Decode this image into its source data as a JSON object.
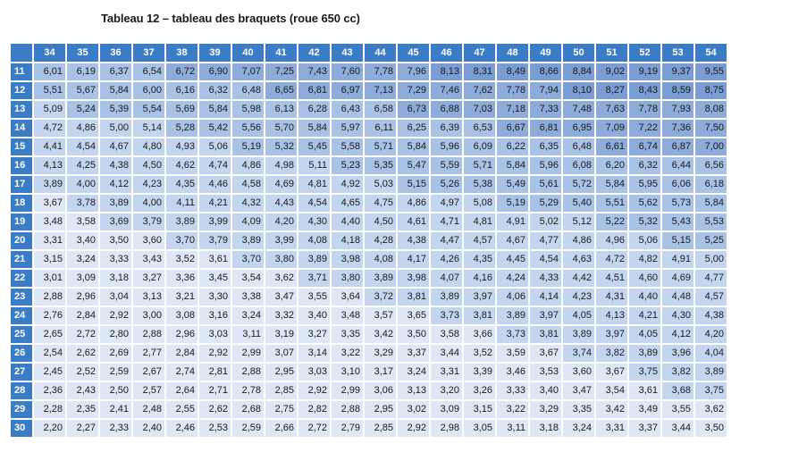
{
  "title": "Tableau 12 – tableau des braquets (roue 650 cc)",
  "columns": [
    "34",
    "35",
    "36",
    "37",
    "38",
    "39",
    "40",
    "41",
    "42",
    "43",
    "44",
    "45",
    "46",
    "47",
    "48",
    "49",
    "50",
    "51",
    "52",
    "53",
    "54"
  ],
  "colors": {
    "header_bg": "#3a7dc6",
    "cell_palette": [
      "#dde7f5",
      "#c4d6ef",
      "#a9c3e6",
      "#8dacd9",
      "#7a9ed3"
    ]
  },
  "rows": [
    {
      "label": "11",
      "values": [
        "6,01",
        "6,19",
        "6,37",
        "6,54",
        "6,72",
        "6,90",
        "7,07",
        "7,25",
        "7,43",
        "7,60",
        "7,78",
        "7,96",
        "8,13",
        "8,31",
        "8,49",
        "8,66",
        "8,84",
        "9,02",
        "9,19",
        "9,37",
        "9,55"
      ]
    },
    {
      "label": "12",
      "values": [
        "5,51",
        "5,67",
        "5,84",
        "6,00",
        "6,16",
        "6,32",
        "6,48",
        "6,65",
        "6,81",
        "6,97",
        "7,13",
        "7,29",
        "7,46",
        "7,62",
        "7,78",
        "7,94",
        "8,10",
        "8,27",
        "8,43",
        "8,59",
        "8,75"
      ]
    },
    {
      "label": "13",
      "values": [
        "5,09",
        "5,24",
        "5,39",
        "5,54",
        "5,69",
        "5,84",
        "5,98",
        "6,13",
        "6,28",
        "6,43",
        "6,58",
        "6,73",
        "6,88",
        "7,03",
        "7,18",
        "7,33",
        "7,48",
        "7,63",
        "7,78",
        "7,93",
        "8,08"
      ]
    },
    {
      "label": "14",
      "values": [
        "4,72",
        "4,86",
        "5,00",
        "5,14",
        "5,28",
        "5,42",
        "5,56",
        "5,70",
        "5,84",
        "5,97",
        "6,11",
        "6,25",
        "6,39",
        "6,53",
        "6,67",
        "6,81",
        "6,95",
        "7,09",
        "7,22",
        "7,36",
        "7,50"
      ]
    },
    {
      "label": "15",
      "values": [
        "4,41",
        "4,54",
        "4,67",
        "4,80",
        "4,93",
        "5,06",
        "5,19",
        "5,32",
        "5,45",
        "5,58",
        "5,71",
        "5,84",
        "5,96",
        "6,09",
        "6,22",
        "6,35",
        "6,48",
        "6,61",
        "6,74",
        "6,87",
        "7,00"
      ]
    },
    {
      "label": "16",
      "values": [
        "4,13",
        "4,25",
        "4,38",
        "4,50",
        "4,62",
        "4,74",
        "4,86",
        "4,98",
        "5,11",
        "5,23",
        "5,35",
        "5,47",
        "5,59",
        "5,71",
        "5,84",
        "5,96",
        "6,08",
        "6,20",
        "6,32",
        "6,44",
        "6,56"
      ]
    },
    {
      "label": "17",
      "values": [
        "3,89",
        "4,00",
        "4,12",
        "4,23",
        "4,35",
        "4,46",
        "4,58",
        "4,69",
        "4,81",
        "4,92",
        "5,03",
        "5,15",
        "5,26",
        "5,38",
        "5,49",
        "5,61",
        "5,72",
        "5,84",
        "5,95",
        "6,06",
        "6,18"
      ]
    },
    {
      "label": "18",
      "values": [
        "3,67",
        "3,78",
        "3,89",
        "4,00",
        "4,11",
        "4,21",
        "4,32",
        "4,43",
        "4,54",
        "4,65",
        "4,75",
        "4,86",
        "4,97",
        "5,08",
        "5,19",
        "5,29",
        "5,40",
        "5,51",
        "5,62",
        "5,73",
        "5,84"
      ]
    },
    {
      "label": "19",
      "values": [
        "3,48",
        "3,58",
        "3,69",
        "3,79",
        "3,89",
        "3,99",
        "4,09",
        "4,20",
        "4,30",
        "4,40",
        "4,50",
        "4,61",
        "4,71",
        "4,81",
        "4,91",
        "5,02",
        "5,12",
        "5,22",
        "5,32",
        "5,43",
        "5,53"
      ]
    },
    {
      "label": "20",
      "values": [
        "3,31",
        "3,40",
        "3,50",
        "3,60",
        "3,70",
        "3,79",
        "3,89",
        "3,99",
        "4,08",
        "4,18",
        "4,28",
        "4,38",
        "4,47",
        "4,57",
        "4,67",
        "4,77",
        "4,86",
        "4,96",
        "5,06",
        "5,15",
        "5,25"
      ]
    },
    {
      "label": "21",
      "values": [
        "3,15",
        "3,24",
        "3,33",
        "3,43",
        "3,52",
        "3,61",
        "3,70",
        "3,80",
        "3,89",
        "3,98",
        "4,08",
        "4,17",
        "4,26",
        "4,35",
        "4,45",
        "4,54",
        "4,63",
        "4,72",
        "4,82",
        "4,91",
        "5,00"
      ]
    },
    {
      "label": "22",
      "values": [
        "3,01",
        "3,09",
        "3,18",
        "3,27",
        "3,36",
        "3,45",
        "3,54",
        "3,62",
        "3,71",
        "3,80",
        "3,89",
        "3,98",
        "4,07",
        "4,16",
        "4,24",
        "4,33",
        "4,42",
        "4,51",
        "4,60",
        "4,69",
        "4,77"
      ]
    },
    {
      "label": "23",
      "values": [
        "2,88",
        "2,96",
        "3,04",
        "3,13",
        "3,21",
        "3,30",
        "3,38",
        "3,47",
        "3,55",
        "3,64",
        "3,72",
        "3,81",
        "3,89",
        "3,97",
        "4,06",
        "4,14",
        "4,23",
        "4,31",
        "4,40",
        "4,48",
        "4,57"
      ]
    },
    {
      "label": "24",
      "values": [
        "2,76",
        "2,84",
        "2,92",
        "3,00",
        "3,08",
        "3,16",
        "3,24",
        "3,32",
        "3,40",
        "3,48",
        "3,57",
        "3,65",
        "3,73",
        "3,81",
        "3,89",
        "3,97",
        "4,05",
        "4,13",
        "4,21",
        "4,30",
        "4,38"
      ]
    },
    {
      "label": "25",
      "values": [
        "2,65",
        "2,72",
        "2,80",
        "2,88",
        "2,96",
        "3,03",
        "3,11",
        "3,19",
        "3,27",
        "3,35",
        "3,42",
        "3,50",
        "3,58",
        "3,66",
        "3,73",
        "3,81",
        "3,89",
        "3,97",
        "4,05",
        "4,12",
        "4,20"
      ]
    },
    {
      "label": "26",
      "values": [
        "2,54",
        "2,62",
        "2,69",
        "2,77",
        "2,84",
        "2,92",
        "2,99",
        "3,07",
        "3,14",
        "3,22",
        "3,29",
        "3,37",
        "3,44",
        "3,52",
        "3,59",
        "3,67",
        "3,74",
        "3,82",
        "3,89",
        "3,96",
        "4,04"
      ]
    },
    {
      "label": "27",
      "values": [
        "2,45",
        "2,52",
        "2,59",
        "2,67",
        "2,74",
        "2,81",
        "2,88",
        "2,95",
        "3,03",
        "3,10",
        "3,17",
        "3,24",
        "3,31",
        "3,39",
        "3,46",
        "3,53",
        "3,60",
        "3,67",
        "3,75",
        "3,82",
        "3,89"
      ]
    },
    {
      "label": "28",
      "values": [
        "2,36",
        "2,43",
        "2,50",
        "2,57",
        "2,64",
        "2,71",
        "2,78",
        "2,85",
        "2,92",
        "2,99",
        "3,06",
        "3,13",
        "3,20",
        "3,26",
        "3,33",
        "3,40",
        "3,47",
        "3,54",
        "3,61",
        "3,68",
        "3,75"
      ]
    },
    {
      "label": "29",
      "values": [
        "2,28",
        "2,35",
        "2,41",
        "2,48",
        "2,55",
        "2,62",
        "2,68",
        "2,75",
        "2,82",
        "2,88",
        "2,95",
        "3,02",
        "3,09",
        "3,15",
        "3,22",
        "3,29",
        "3,35",
        "3,42",
        "3,49",
        "3,55",
        "3,62"
      ]
    },
    {
      "label": "30",
      "values": [
        "2,20",
        "2,27",
        "2,33",
        "2,40",
        "2,46",
        "2,53",
        "2,59",
        "2,66",
        "2,72",
        "2,79",
        "2,85",
        "2,92",
        "2,98",
        "3,05",
        "3,11",
        "3,18",
        "3,24",
        "3,31",
        "3,37",
        "3,44",
        "3,50"
      ]
    }
  ]
}
